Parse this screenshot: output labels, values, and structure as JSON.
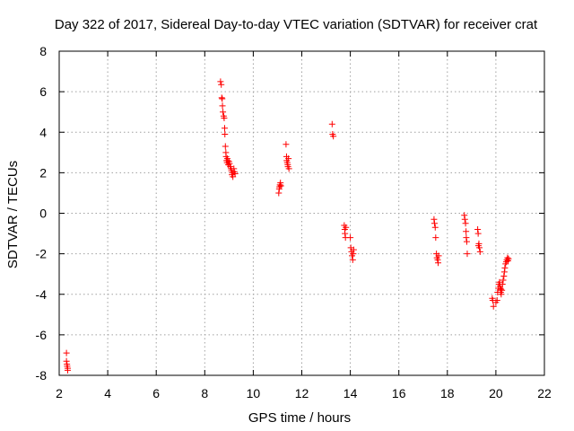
{
  "chart_data": {
    "type": "scatter",
    "title": "Day 322 of 2017, Sidereal Day-to-day VTEC variation (SDTVAR) for receiver crat",
    "xlabel": "GPS time / hours",
    "ylabel": "SDTVAR / TECUs",
    "xlim": [
      2,
      22
    ],
    "ylim": [
      -8,
      8
    ],
    "xticks": [
      2,
      4,
      6,
      8,
      10,
      12,
      14,
      16,
      18,
      20,
      22
    ],
    "yticks": [
      -8,
      -6,
      -4,
      -2,
      0,
      2,
      4,
      6,
      8
    ],
    "grid": true,
    "marker": "plus",
    "marker_color": "#ff0000",
    "series": [
      {
        "name": "SDTVAR",
        "points": [
          [
            2.3,
            -6.9
          ],
          [
            2.3,
            -7.3
          ],
          [
            2.32,
            -7.45
          ],
          [
            2.33,
            -7.55
          ],
          [
            2.35,
            -7.65
          ],
          [
            2.35,
            -7.75
          ],
          [
            8.65,
            6.5
          ],
          [
            8.68,
            6.35
          ],
          [
            8.7,
            5.7
          ],
          [
            8.72,
            5.65
          ],
          [
            8.73,
            5.3
          ],
          [
            8.75,
            5.0
          ],
          [
            8.78,
            4.8
          ],
          [
            8.8,
            4.7
          ],
          [
            8.82,
            4.2
          ],
          [
            8.83,
            3.9
          ],
          [
            8.85,
            3.3
          ],
          [
            8.87,
            3.0
          ],
          [
            8.88,
            2.8
          ],
          [
            8.9,
            2.6
          ],
          [
            8.92,
            2.5
          ],
          [
            8.93,
            2.7
          ],
          [
            8.95,
            2.6
          ],
          [
            8.97,
            2.4
          ],
          [
            9.0,
            2.55
          ],
          [
            9.02,
            2.45
          ],
          [
            9.05,
            2.3
          ],
          [
            9.08,
            2.2
          ],
          [
            9.1,
            2.1
          ],
          [
            9.12,
            1.9
          ],
          [
            9.14,
            2.0
          ],
          [
            9.16,
            1.8
          ],
          [
            9.2,
            2.2
          ],
          [
            9.22,
            2.05
          ],
          [
            9.25,
            1.95
          ],
          [
            11.05,
            1.0
          ],
          [
            11.07,
            1.2
          ],
          [
            11.08,
            1.3
          ],
          [
            11.1,
            1.4
          ],
          [
            11.12,
            1.5
          ],
          [
            11.14,
            1.35
          ],
          [
            11.35,
            3.4
          ],
          [
            11.37,
            2.8
          ],
          [
            11.38,
            2.6
          ],
          [
            11.4,
            2.5
          ],
          [
            11.42,
            2.4
          ],
          [
            11.43,
            2.3
          ],
          [
            11.45,
            2.7
          ],
          [
            11.47,
            2.2
          ],
          [
            13.25,
            4.4
          ],
          [
            13.27,
            3.9
          ],
          [
            13.3,
            3.8
          ],
          [
            13.75,
            -0.6
          ],
          [
            13.77,
            -0.8
          ],
          [
            13.78,
            -1.0
          ],
          [
            13.8,
            -1.2
          ],
          [
            13.82,
            -0.7
          ],
          [
            14.0,
            -1.2
          ],
          [
            14.02,
            -1.7
          ],
          [
            14.05,
            -1.9
          ],
          [
            14.07,
            -2.1
          ],
          [
            14.1,
            -2.3
          ],
          [
            14.12,
            -2.0
          ],
          [
            14.14,
            -1.8
          ],
          [
            17.45,
            -0.3
          ],
          [
            17.47,
            -0.5
          ],
          [
            17.5,
            -0.7
          ],
          [
            17.52,
            -1.2
          ],
          [
            17.55,
            -2.0
          ],
          [
            17.57,
            -2.2
          ],
          [
            17.6,
            -2.3
          ],
          [
            17.62,
            -2.45
          ],
          [
            17.64,
            -2.1
          ],
          [
            18.7,
            -0.1
          ],
          [
            18.72,
            -0.3
          ],
          [
            18.75,
            -0.5
          ],
          [
            18.77,
            -0.9
          ],
          [
            18.8,
            -1.4
          ],
          [
            18.82,
            -2.0
          ],
          [
            18.78,
            -1.2
          ],
          [
            19.25,
            -0.8
          ],
          [
            19.27,
            -1.0
          ],
          [
            19.3,
            -1.5
          ],
          [
            19.32,
            -1.7
          ],
          [
            19.35,
            -1.9
          ],
          [
            19.28,
            -1.6
          ],
          [
            19.85,
            -4.2
          ],
          [
            19.87,
            -4.3
          ],
          [
            19.9,
            -4.6
          ],
          [
            20.0,
            -4.4
          ],
          [
            20.05,
            -4.3
          ],
          [
            20.07,
            -3.9
          ],
          [
            20.1,
            -3.7
          ],
          [
            20.12,
            -3.5
          ],
          [
            20.15,
            -3.4
          ],
          [
            20.17,
            -3.6
          ],
          [
            20.2,
            -3.9
          ],
          [
            20.22,
            -4.0
          ],
          [
            20.25,
            -3.8
          ],
          [
            20.27,
            -3.5
          ],
          [
            20.3,
            -3.3
          ],
          [
            20.33,
            -3.1
          ],
          [
            20.35,
            -2.9
          ],
          [
            20.37,
            -2.7
          ],
          [
            20.4,
            -2.5
          ],
          [
            20.43,
            -2.4
          ],
          [
            20.45,
            -2.3
          ],
          [
            20.48,
            -2.2
          ],
          [
            20.5,
            -2.35
          ],
          [
            20.52,
            -2.25
          ],
          [
            20.18,
            -3.7
          ],
          [
            20.21,
            -3.75
          ]
        ]
      }
    ]
  }
}
